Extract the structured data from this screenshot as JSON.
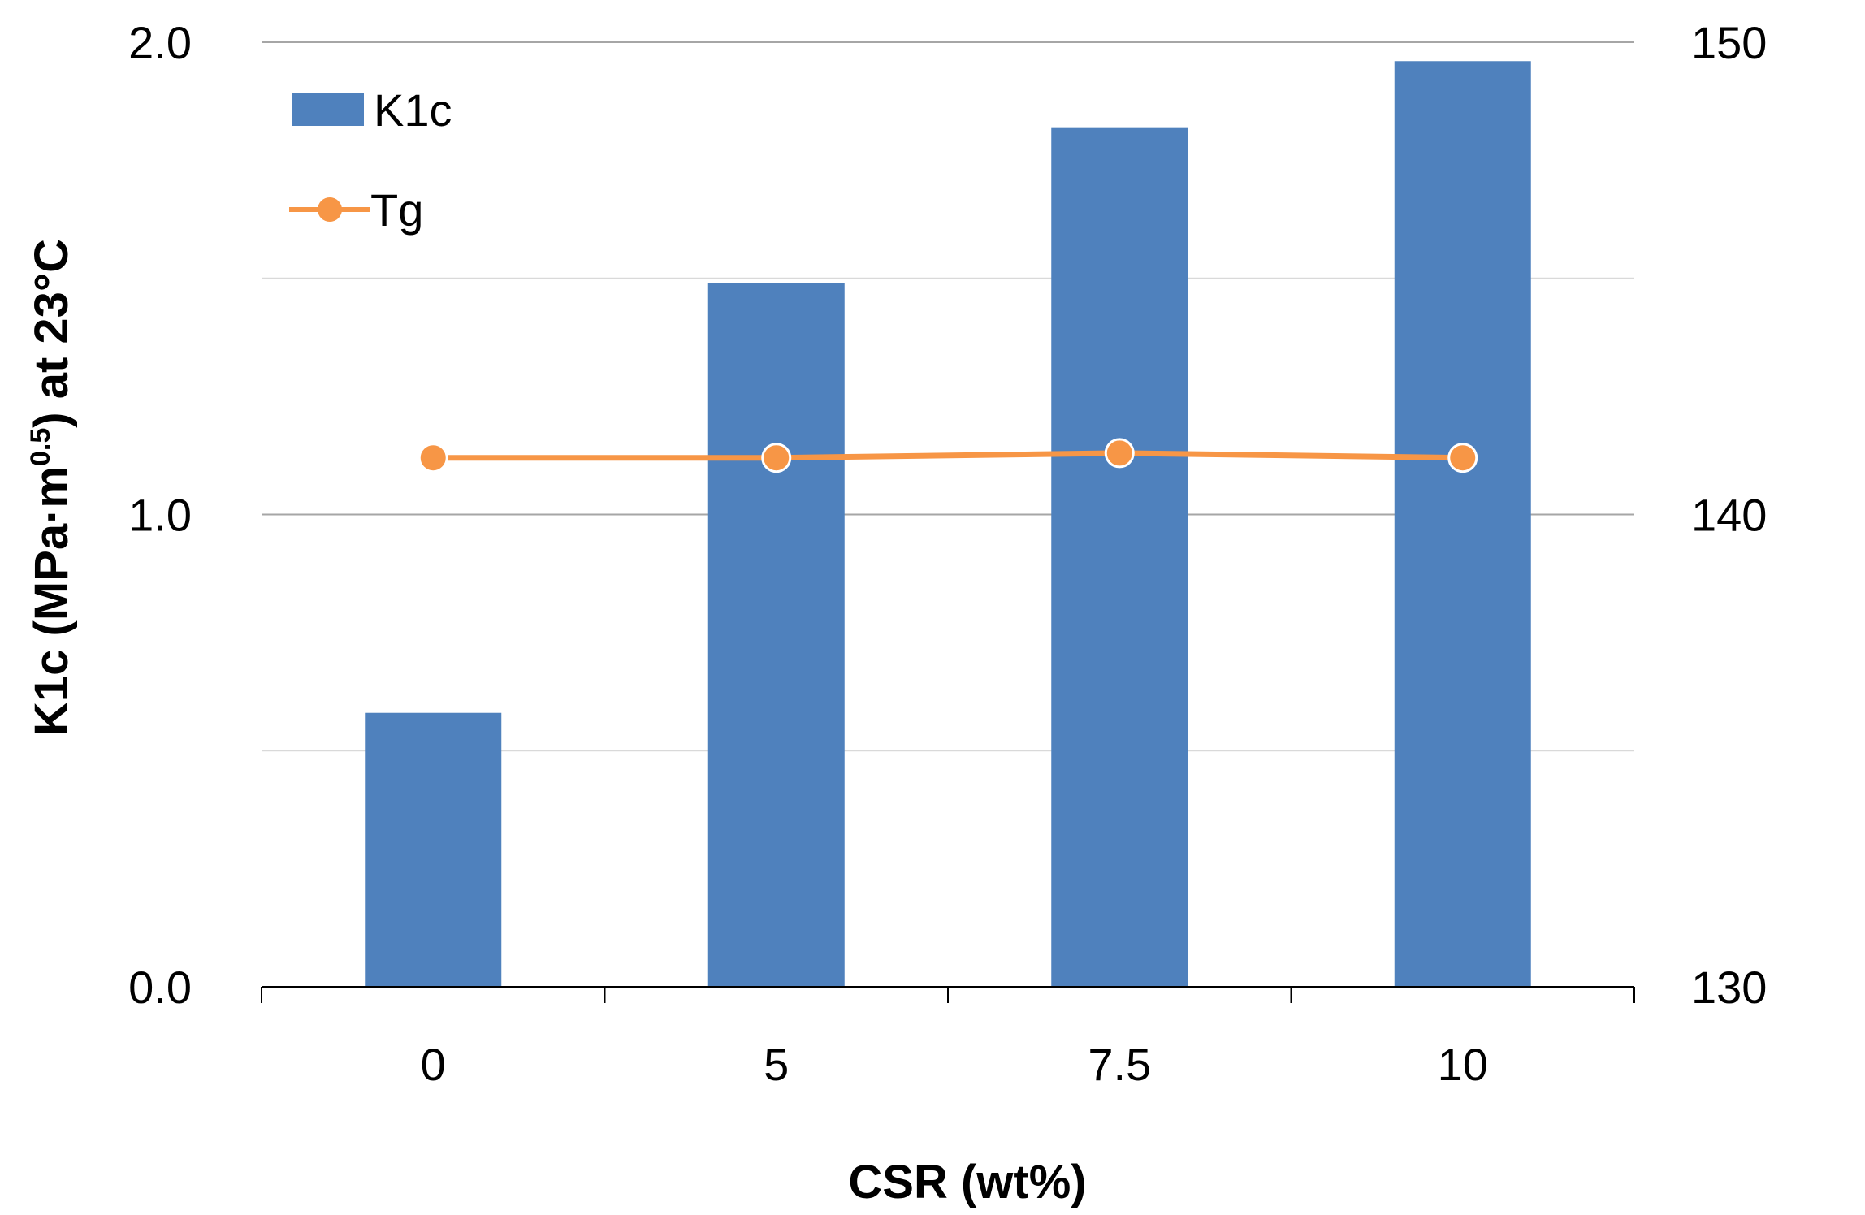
{
  "chart_data": {
    "type": "bar",
    "categories": [
      "0",
      "5",
      "7.5",
      "10"
    ],
    "series": [
      {
        "name": "K1c",
        "type": "bar",
        "axis": "left",
        "values": [
          0.58,
          1.49,
          1.82,
          1.96
        ],
        "color": "#4f81bd"
      },
      {
        "name": "Tg",
        "type": "line",
        "axis": "right",
        "values": [
          141.2,
          141.2,
          141.3,
          141.2
        ],
        "color": "#f79646"
      }
    ],
    "xlabel": "CSR (wt%)",
    "ylabel_parts": [
      "K1c (MPa·m",
      "0.5",
      ") at 23°C"
    ],
    "ylim": [
      0,
      2.0
    ],
    "ylim_right": [
      130,
      150
    ],
    "y_ticks": [
      "0.0",
      "1.0",
      "2.0"
    ],
    "y_ticks_right": [
      "130",
      "140",
      "150"
    ],
    "grid": true,
    "legend_position": "top-left"
  }
}
